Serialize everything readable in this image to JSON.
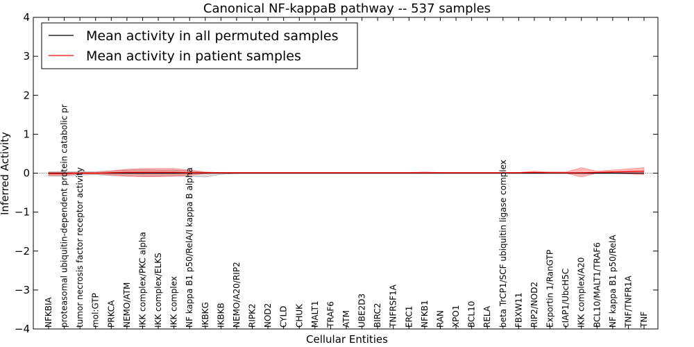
{
  "chart_data": {
    "type": "line",
    "title": "Canonical NF-kappaB pathway -- 537 samples",
    "xlabel": "Cellular Entities",
    "ylabel": "Inferred Activity",
    "ylim": [
      -4,
      4
    ],
    "yticks": [
      -4,
      -3,
      -2,
      -1,
      0,
      1,
      2,
      3,
      4
    ],
    "ytick_labels": [
      "−4",
      "−3",
      "−2",
      "−1",
      "0",
      "1",
      "2",
      "3",
      "4"
    ],
    "legend_position": "upper-left",
    "categories": [
      "NFKBIA",
      "proteasomal ubiquitin-dependent protein catabolic pr",
      "tumor necrosis factor receptor activity",
      "mol:GTP",
      "PRKCA",
      "NEMO/ATM",
      "IKK complex/PKC alpha",
      "IKK complex/ELKS",
      "IKK complex",
      "NF kappa B1 p50/RelA/I kappa B alpha",
      "IKBKG",
      "IKBKB",
      "NEMO/A20/RIP2",
      "RIPK2",
      "NOD2",
      "CYLD",
      "CHUK",
      "MALT1",
      "TRAF6",
      "ATM",
      "UBE2D3",
      "BIRC2",
      "TNFRSF1A",
      "ERC1",
      "NFKB1",
      "RAN",
      "XPO1",
      "BCL10",
      "RELA",
      "beta TrCP1/SCF ubiquitin ligase complex",
      "FBXW11",
      "RIP2/NOD2",
      "Exportin 1/RanGTP",
      "cIAP1/UbcH5C",
      "IKK complex/A20",
      "BCL10/MALT1/TRAF6",
      "NF kappa B1 p50/RelA",
      "TNF/TNFR1A",
      "TNF"
    ],
    "series": [
      {
        "name": "Mean activity in all permuted samples",
        "color": "#000000",
        "values": [
          0,
          0,
          0,
          0,
          0,
          0,
          0,
          0,
          0,
          0,
          0,
          0,
          0,
          0,
          0,
          0,
          0,
          0,
          0,
          0,
          0,
          0,
          0,
          0,
          0,
          0,
          0,
          0,
          0,
          0,
          0,
          0,
          0,
          0,
          0,
          0,
          0,
          0,
          0
        ],
        "band_upper": [
          0.04,
          0.04,
          0.04,
          0.04,
          0.06,
          0.08,
          0.09,
          0.08,
          0.08,
          0.06,
          0.02,
          0.01,
          0.01,
          0.01,
          0.01,
          0.01,
          0.01,
          0.01,
          0.01,
          0.01,
          0.01,
          0.01,
          0.01,
          0.01,
          0.01,
          0.01,
          0.01,
          0.01,
          0.01,
          0.01,
          0.01,
          0.01,
          0.01,
          0.01,
          0.01,
          0.01,
          0.01,
          0.01,
          0.01
        ],
        "band_lower": [
          -0.08,
          -0.08,
          -0.05,
          -0.04,
          -0.06,
          -0.08,
          -0.09,
          -0.08,
          -0.08,
          -0.08,
          -0.1,
          -0.03,
          -0.01,
          -0.01,
          -0.01,
          -0.01,
          -0.01,
          -0.01,
          -0.01,
          -0.01,
          -0.01,
          -0.01,
          -0.01,
          -0.01,
          -0.01,
          -0.01,
          -0.01,
          -0.01,
          -0.01,
          -0.01,
          -0.01,
          -0.01,
          -0.01,
          -0.01,
          -0.01,
          -0.01,
          -0.01,
          -0.01,
          -0.01
        ]
      },
      {
        "name": "Mean activity in patient samples",
        "color": "#ff0000",
        "values": [
          -0.01,
          -0.01,
          0,
          0,
          0.01,
          0.02,
          0.02,
          0.02,
          0.02,
          0.01,
          0.01,
          0.01,
          0.01,
          0.01,
          0.01,
          0.01,
          0.01,
          0.01,
          0.01,
          0.01,
          0.01,
          0.01,
          0.01,
          0.01,
          0.01,
          0.01,
          0.01,
          0.01,
          0.01,
          0.01,
          0.01,
          0.02,
          0.01,
          0.01,
          0.01,
          0.02,
          0.03,
          0.04,
          0.05
        ],
        "band_upper": [
          0.02,
          0.02,
          0.02,
          0.02,
          0.06,
          0.1,
          0.12,
          0.12,
          0.12,
          0.08,
          0.03,
          0.02,
          0.02,
          0.02,
          0.02,
          0.02,
          0.02,
          0.02,
          0.02,
          0.02,
          0.02,
          0.02,
          0.02,
          0.02,
          0.03,
          0.02,
          0.02,
          0.02,
          0.02,
          0.02,
          0.02,
          0.05,
          0.03,
          0.03,
          0.14,
          0.05,
          0.08,
          0.11,
          0.14
        ],
        "band_lower": [
          -0.06,
          -0.06,
          -0.02,
          -0.02,
          -0.05,
          -0.08,
          -0.09,
          -0.09,
          -0.08,
          -0.06,
          -0.01,
          0,
          0,
          0,
          0,
          0,
          0,
          0,
          0,
          0,
          0,
          0,
          0,
          0,
          0,
          0,
          0,
          0,
          0,
          0,
          0,
          0,
          0,
          0,
          -0.1,
          0,
          0,
          -0.02,
          -0.04
        ]
      }
    ]
  }
}
